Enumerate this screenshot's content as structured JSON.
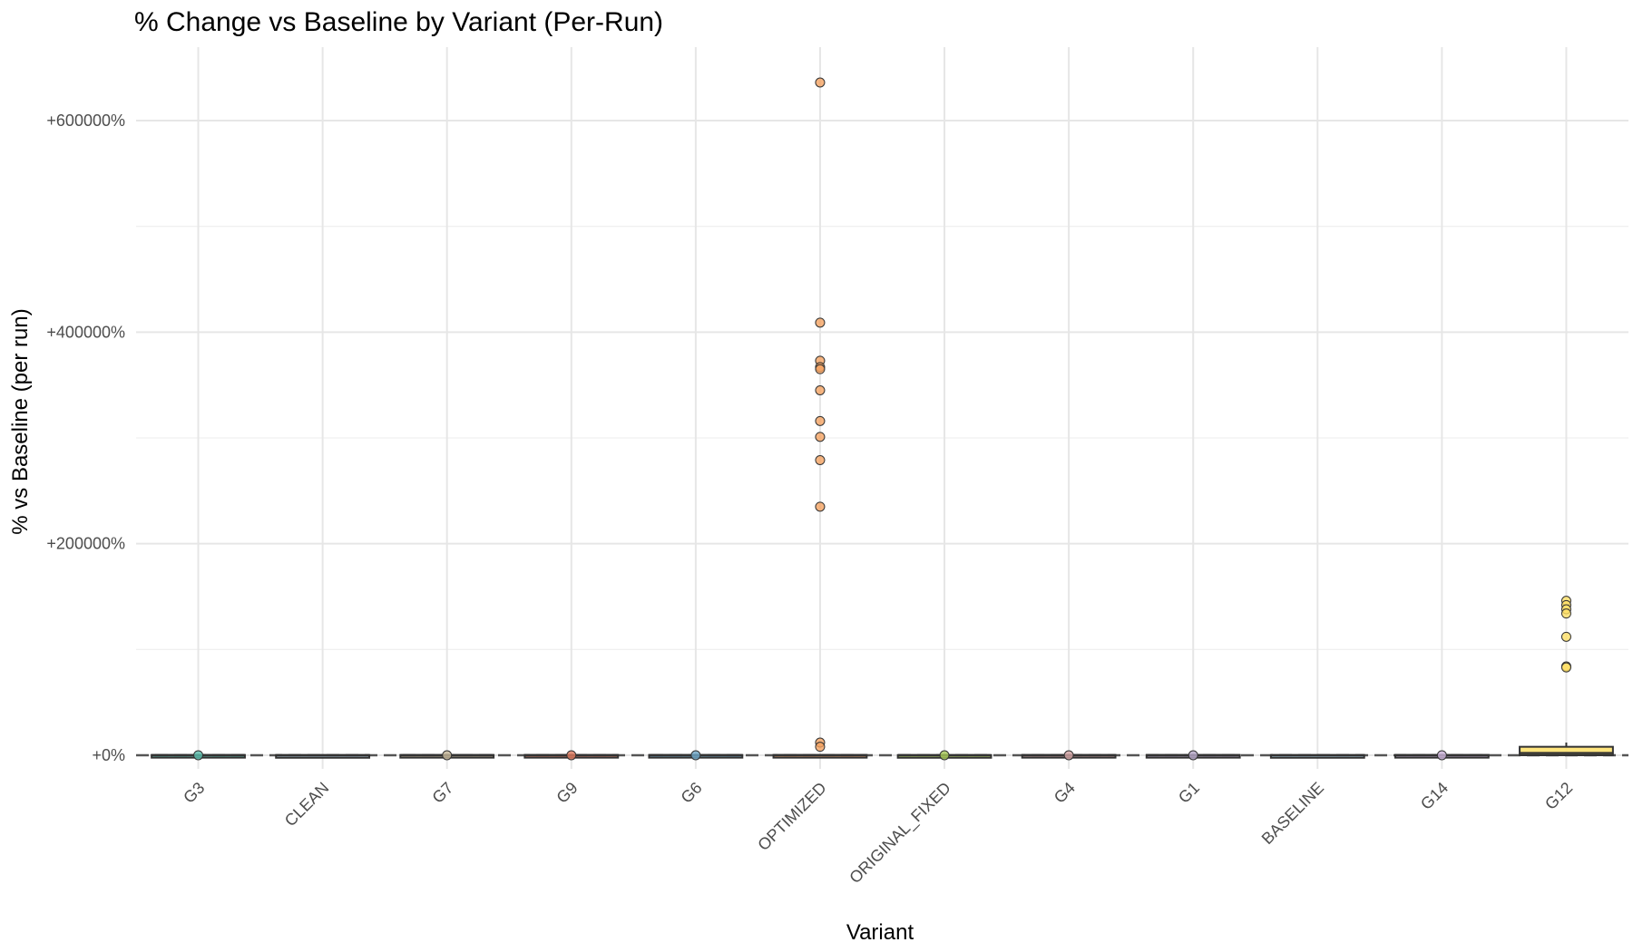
{
  "chart_data": {
    "type": "box",
    "title": "% Change vs Baseline by Variant (Per-Run)",
    "xlabel": "Variant",
    "ylabel": "% vs Baseline (per run)",
    "ylim": [
      -30000,
      665000
    ],
    "y_ticks": [
      0,
      200000,
      400000,
      600000
    ],
    "y_tick_labels": [
      "+0%",
      "+200000%",
      "+400000%",
      "+600000%"
    ],
    "y_minor_ticks": [
      100000,
      300000,
      500000
    ],
    "reference_line": 0,
    "grid": true,
    "legend": "none",
    "categories": [
      "G3",
      "CLEAN",
      "G7",
      "G9",
      "G6",
      "OPTIMIZED",
      "ORIGINAL_FIXED",
      "G4",
      "G1",
      "BASELINE",
      "G14",
      "G12"
    ],
    "colors": [
      "#5bbfae",
      "#9ab0c2",
      "#c7b89a",
      "#e07a5f",
      "#6fa8c8",
      "#f4a261",
      "#a7c957",
      "#d4a5a5",
      "#b8a9c9",
      "#a0c4d8",
      "#cdb4db",
      "#ffe066"
    ],
    "boxes": [
      {
        "name": "G3",
        "q1": -300,
        "median": 0,
        "q3": 300,
        "whisker_low": -600,
        "whisker_high": 600,
        "outliers": [
          0
        ]
      },
      {
        "name": "CLEAN",
        "q1": -200,
        "median": 0,
        "q3": 200,
        "whisker_low": -400,
        "whisker_high": 400,
        "outliers": []
      },
      {
        "name": "G7",
        "q1": -300,
        "median": 0,
        "q3": 300,
        "whisker_low": -600,
        "whisker_high": 600,
        "outliers": [
          0
        ]
      },
      {
        "name": "G9",
        "q1": -300,
        "median": 0,
        "q3": 300,
        "whisker_low": -600,
        "whisker_high": 600,
        "outliers": [
          0
        ]
      },
      {
        "name": "G6",
        "q1": -300,
        "median": 0,
        "q3": 300,
        "whisker_low": -600,
        "whisker_high": 600,
        "outliers": [
          0
        ]
      },
      {
        "name": "OPTIMIZED",
        "q1": -300,
        "median": 0,
        "q3": 300,
        "whisker_low": -600,
        "whisker_high": 600,
        "outliers": [
          636000,
          409000,
          373000,
          367000,
          365000,
          345000,
          316000,
          301000,
          279000,
          235000,
          12000,
          8000
        ]
      },
      {
        "name": "ORIGINAL_FIXED",
        "q1": -200,
        "median": 0,
        "q3": 200,
        "whisker_low": -400,
        "whisker_high": 400,
        "outliers": [
          0
        ]
      },
      {
        "name": "G4",
        "q1": -300,
        "median": 0,
        "q3": 300,
        "whisker_low": -600,
        "whisker_high": 600,
        "outliers": [
          0
        ]
      },
      {
        "name": "G1",
        "q1": -300,
        "median": 0,
        "q3": 300,
        "whisker_low": -600,
        "whisker_high": 600,
        "outliers": [
          0
        ]
      },
      {
        "name": "BASELINE",
        "q1": -200,
        "median": 0,
        "q3": 200,
        "whisker_low": -400,
        "whisker_high": 400,
        "outliers": []
      },
      {
        "name": "G14",
        "q1": -300,
        "median": 0,
        "q3": 300,
        "whisker_low": -600,
        "whisker_high": 600,
        "outliers": [
          0
        ]
      },
      {
        "name": "G12",
        "q1": 0,
        "median": 2000,
        "q3": 8000,
        "whisker_low": 0,
        "whisker_high": 12000,
        "outliers": [
          146000,
          142000,
          138000,
          134000,
          112000,
          84000,
          83000
        ]
      }
    ]
  }
}
